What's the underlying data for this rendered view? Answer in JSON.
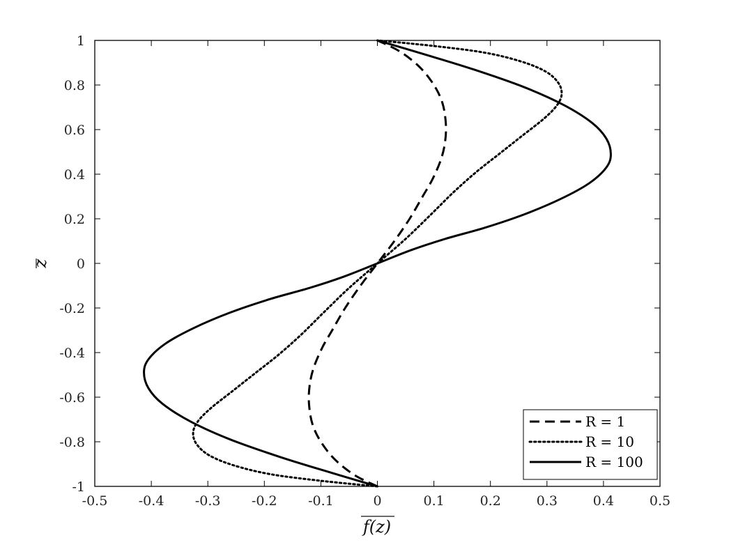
{
  "chart_data": {
    "type": "line",
    "title": "",
    "xlabel": "f(z)",
    "ylabel": "z",
    "xlim": [
      -0.5,
      0.5
    ],
    "ylim": [
      -1,
      1
    ],
    "xticks": [
      -0.5,
      -0.4,
      -0.3,
      -0.2,
      -0.1,
      0,
      0.1,
      0.2,
      0.3,
      0.4,
      0.5
    ],
    "xtick_labels": [
      "-0.5",
      "-0.4",
      "-0.3",
      "-0.2",
      "-0.1",
      "0",
      "0.1",
      "0.2",
      "0.3",
      "0.4",
      "0.5"
    ],
    "yticks": [
      -1,
      -0.8,
      -0.6,
      -0.4,
      -0.2,
      0,
      0.2,
      0.4,
      0.6,
      0.8,
      1
    ],
    "ytick_labels": [
      "-1",
      "-0.8",
      "-0.6",
      "-0.4",
      "-0.2",
      "0",
      "0.2",
      "0.4",
      "0.6",
      "0.8",
      "1"
    ],
    "grid": false,
    "legend_position": "bottom-right",
    "series": [
      {
        "name": "R = 1",
        "style": "dashed",
        "color": "#000000",
        "points": [
          [
            0.0,
            -1.0
          ],
          [
            -0.04,
            -0.95
          ],
          [
            -0.075,
            -0.88
          ],
          [
            -0.1,
            -0.8
          ],
          [
            -0.115,
            -0.72
          ],
          [
            -0.121,
            -0.63
          ],
          [
            -0.12,
            -0.55
          ],
          [
            -0.113,
            -0.47
          ],
          [
            -0.098,
            -0.38
          ],
          [
            -0.08,
            -0.3
          ],
          [
            -0.057,
            -0.2
          ],
          [
            -0.03,
            -0.1
          ],
          [
            0.0,
            0.0
          ],
          [
            0.03,
            0.1
          ],
          [
            0.057,
            0.2
          ],
          [
            0.08,
            0.3
          ],
          [
            0.098,
            0.38
          ],
          [
            0.113,
            0.47
          ],
          [
            0.12,
            0.55
          ],
          [
            0.121,
            0.63
          ],
          [
            0.115,
            0.72
          ],
          [
            0.1,
            0.8
          ],
          [
            0.075,
            0.88
          ],
          [
            0.04,
            0.95
          ],
          [
            0.0,
            1.0
          ]
        ]
      },
      {
        "name": "R = 10",
        "style": "dotted",
        "color": "#000000",
        "points": [
          [
            0.0,
            -1.0
          ],
          [
            -0.1,
            -0.975
          ],
          [
            -0.19,
            -0.945
          ],
          [
            -0.255,
            -0.905
          ],
          [
            -0.298,
            -0.86
          ],
          [
            -0.32,
            -0.81
          ],
          [
            -0.326,
            -0.76
          ],
          [
            -0.318,
            -0.71
          ],
          [
            -0.295,
            -0.65
          ],
          [
            -0.255,
            -0.57
          ],
          [
            -0.215,
            -0.49
          ],
          [
            -0.175,
            -0.41
          ],
          [
            -0.135,
            -0.32
          ],
          [
            -0.095,
            -0.22
          ],
          [
            -0.05,
            -0.11
          ],
          [
            0.0,
            0.0
          ],
          [
            0.05,
            0.11
          ],
          [
            0.095,
            0.22
          ],
          [
            0.135,
            0.32
          ],
          [
            0.175,
            0.41
          ],
          [
            0.215,
            0.49
          ],
          [
            0.255,
            0.57
          ],
          [
            0.295,
            0.65
          ],
          [
            0.318,
            0.71
          ],
          [
            0.326,
            0.76
          ],
          [
            0.32,
            0.81
          ],
          [
            0.298,
            0.86
          ],
          [
            0.255,
            0.905
          ],
          [
            0.19,
            0.945
          ],
          [
            0.1,
            0.975
          ],
          [
            0.0,
            1.0
          ]
        ]
      },
      {
        "name": "R = 100",
        "style": "solid",
        "color": "#000000",
        "points": [
          [
            0.0,
            -1.0
          ],
          [
            -0.08,
            -0.94
          ],
          [
            -0.17,
            -0.87
          ],
          [
            -0.26,
            -0.79
          ],
          [
            -0.33,
            -0.71
          ],
          [
            -0.38,
            -0.63
          ],
          [
            -0.405,
            -0.56
          ],
          [
            -0.413,
            -0.49
          ],
          [
            -0.405,
            -0.43
          ],
          [
            -0.375,
            -0.36
          ],
          [
            -0.325,
            -0.29
          ],
          [
            -0.26,
            -0.22
          ],
          [
            -0.19,
            -0.16
          ],
          [
            -0.12,
            -0.11
          ],
          [
            -0.06,
            -0.06
          ],
          [
            0.0,
            0.0
          ],
          [
            0.06,
            0.06
          ],
          [
            0.12,
            0.11
          ],
          [
            0.19,
            0.16
          ],
          [
            0.26,
            0.22
          ],
          [
            0.325,
            0.29
          ],
          [
            0.375,
            0.36
          ],
          [
            0.405,
            0.43
          ],
          [
            0.413,
            0.49
          ],
          [
            0.405,
            0.56
          ],
          [
            0.38,
            0.63
          ],
          [
            0.33,
            0.71
          ],
          [
            0.26,
            0.79
          ],
          [
            0.17,
            0.87
          ],
          [
            0.08,
            0.94
          ],
          [
            0.0,
            1.0
          ]
        ]
      }
    ]
  }
}
